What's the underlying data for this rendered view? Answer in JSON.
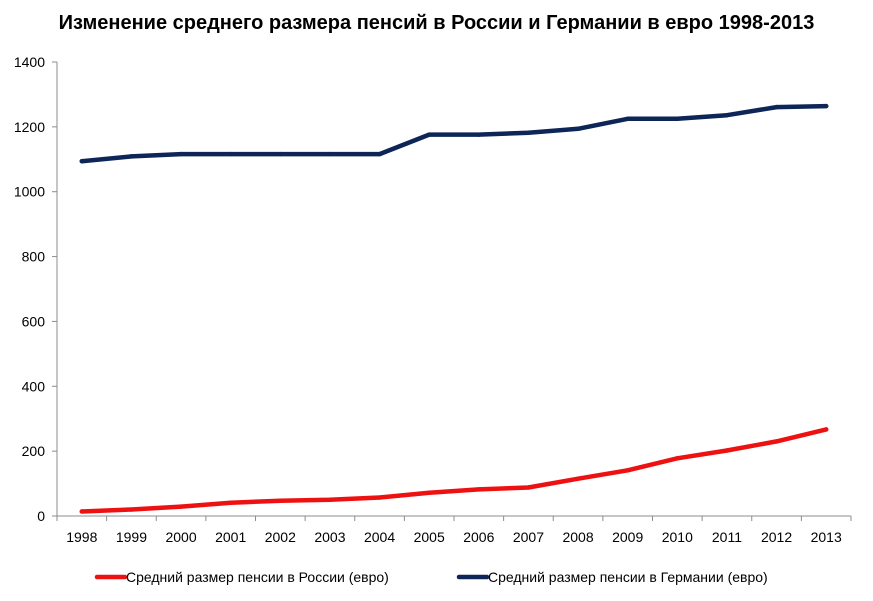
{
  "chart_data": {
    "type": "line",
    "title": "Изменение среднего размера пенсий в России и Германии в евро 1998-2013",
    "xlabel": "",
    "ylabel": "",
    "ylim": [
      0,
      1400
    ],
    "yticks": [
      "0",
      "200",
      "400",
      "600",
      "800",
      "1000",
      "1200",
      "1400"
    ],
    "categories": [
      "1998",
      "1999",
      "2000",
      "2001",
      "2002",
      "2003",
      "2004",
      "2005",
      "2006",
      "2007",
      "2008",
      "2009",
      "2010",
      "2011",
      "2012",
      "2013"
    ],
    "series": [
      {
        "name": "Средний размер пенсии в России (евро)",
        "color": "#ee1111",
        "values": [
          14,
          20,
          29,
          41,
          47,
          50,
          57,
          72,
          82,
          88,
          115,
          141,
          178,
          202,
          230,
          267
        ]
      },
      {
        "name": "Средний размер пенсии в Германии (евро)",
        "color": "#0d2657",
        "values": [
          1094,
          1109,
          1116,
          1116,
          1116,
          1116,
          1116,
          1176,
          1176,
          1182,
          1194,
          1225,
          1225,
          1236,
          1261,
          1264
        ]
      }
    ],
    "legend": "bottom"
  }
}
